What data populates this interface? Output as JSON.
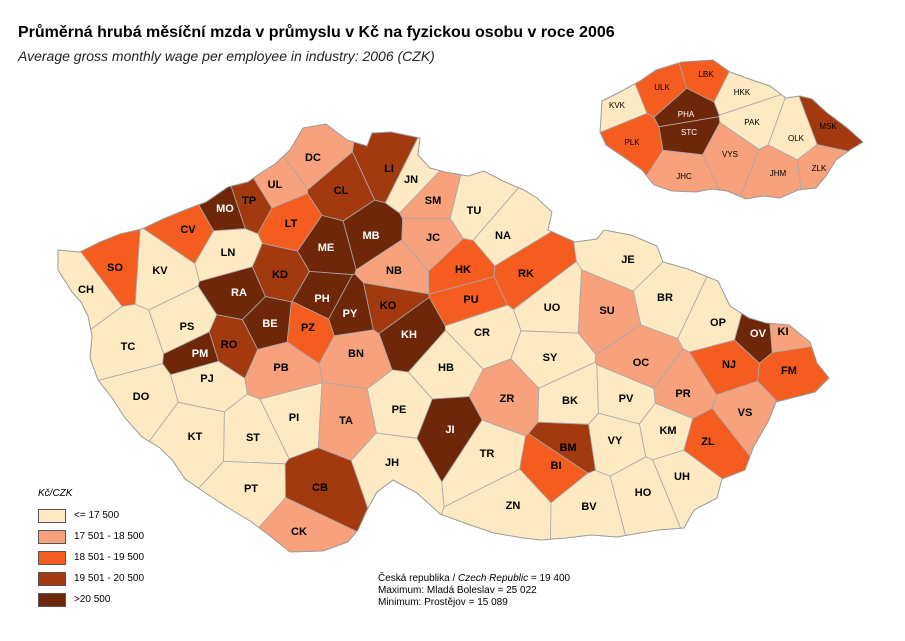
{
  "title": "Průměrná hrubá měsíční mzda v průmyslu v Kč na fyzickou osobu  v roce 2006",
  "subtitle": "Average gross monthly wage per employee in industry: 2006 (CZK)",
  "colors": {
    "c1": "#fde9c2",
    "c2": "#f7a27c",
    "c3": "#f45d1f",
    "c4": "#a3390f",
    "c5": "#6e2709",
    "border": "#a8a8a8"
  },
  "legend": {
    "title": "Kč/CZK",
    "items": [
      {
        "label": "<= 17 500",
        "color": "#fde9c2"
      },
      {
        "label": "17 501 - 18 500",
        "color": "#f7a27c"
      },
      {
        "label": "18 501 - 19 500",
        "color": "#f45d1f"
      },
      {
        "label": "19 501 - 20 500",
        "color": "#a3390f"
      },
      {
        "label": ">20 500",
        "color": "#6e2709"
      }
    ]
  },
  "footnote": {
    "line1_label": "Česká republika / ",
    "line1_label_en": "Czech Republic",
    "line1_value": " = 19 400",
    "line2": "Maximum:  Mladá Boleslav =  25 022",
    "line3": "Minimum: Prostějov = 15 089"
  },
  "districts": [
    {
      "code": "DC",
      "cls": 2
    },
    {
      "code": "CL",
      "cls": 4
    },
    {
      "code": "LI",
      "cls": 4
    },
    {
      "code": "JN",
      "cls": 1
    },
    {
      "code": "UL",
      "cls": 2
    },
    {
      "code": "TP",
      "cls": 4
    },
    {
      "code": "MO",
      "cls": 5
    },
    {
      "code": "SM",
      "cls": 2
    },
    {
      "code": "TU",
      "cls": 1
    },
    {
      "code": "CV",
      "cls": 3
    },
    {
      "code": "LT",
      "cls": 3
    },
    {
      "code": "ME",
      "cls": 5
    },
    {
      "code": "MB",
      "cls": 5
    },
    {
      "code": "JC",
      "cls": 2
    },
    {
      "code": "NA",
      "cls": 1
    },
    {
      "code": "LN",
      "cls": 1
    },
    {
      "code": "KV",
      "cls": 1
    },
    {
      "code": "SO",
      "cls": 3
    },
    {
      "code": "CH",
      "cls": 1
    },
    {
      "code": "KD",
      "cls": 4
    },
    {
      "code": "NB",
      "cls": 2
    },
    {
      "code": "HK",
      "cls": 3
    },
    {
      "code": "RK",
      "cls": 3
    },
    {
      "code": "JE",
      "cls": 1
    },
    {
      "code": "RA",
      "cls": 5
    },
    {
      "code": "PH",
      "cls": 5
    },
    {
      "code": "PU",
      "cls": 3
    },
    {
      "code": "BR",
      "cls": 1
    },
    {
      "code": "PS",
      "cls": 1
    },
    {
      "code": "BE",
      "cls": 5
    },
    {
      "code": "PZ",
      "cls": 3
    },
    {
      "code": "PY",
      "cls": 5
    },
    {
      "code": "KO",
      "cls": 4
    },
    {
      "code": "UO",
      "cls": 1
    },
    {
      "code": "SU",
      "cls": 2
    },
    {
      "code": "OP",
      "cls": 1
    },
    {
      "code": "KI",
      "cls": 2
    },
    {
      "code": "OV",
      "cls": 5
    },
    {
      "code": "TC",
      "cls": 1
    },
    {
      "code": "RO",
      "cls": 4
    },
    {
      "code": "KH",
      "cls": 5
    },
    {
      "code": "CR",
      "cls": 1
    },
    {
      "code": "PM",
      "cls": 5
    },
    {
      "code": "PJ",
      "cls": 1
    },
    {
      "code": "BN",
      "cls": 2
    },
    {
      "code": "SY",
      "cls": 1
    },
    {
      "code": "OC",
      "cls": 2
    },
    {
      "code": "NJ",
      "cls": 3
    },
    {
      "code": "FM",
      "cls": 3
    },
    {
      "code": "PB",
      "cls": 2
    },
    {
      "code": "HB",
      "cls": 1
    },
    {
      "code": "DO",
      "cls": 1
    },
    {
      "code": "ZR",
      "cls": 2
    },
    {
      "code": "PR",
      "cls": 2
    },
    {
      "code": "BK",
      "cls": 1
    },
    {
      "code": "PV",
      "cls": 1
    },
    {
      "code": "VS",
      "cls": 2
    },
    {
      "code": "PI",
      "cls": 1
    },
    {
      "code": "PE",
      "cls": 1
    },
    {
      "code": "TA",
      "cls": 2
    },
    {
      "code": "KT",
      "cls": 1
    },
    {
      "code": "ST",
      "cls": 1
    },
    {
      "code": "JI",
      "cls": 5
    },
    {
      "code": "BM",
      "cls": 4
    },
    {
      "code": "KM",
      "cls": 1
    },
    {
      "code": "ZL",
      "cls": 3
    },
    {
      "code": "VY",
      "cls": 1
    },
    {
      "code": "JH",
      "cls": 1
    },
    {
      "code": "TR",
      "cls": 1
    },
    {
      "code": "BI",
      "cls": 3
    },
    {
      "code": "UH",
      "cls": 1
    },
    {
      "code": "PT",
      "cls": 1
    },
    {
      "code": "CB",
      "cls": 4
    },
    {
      "code": "HO",
      "cls": 1
    },
    {
      "code": "ZN",
      "cls": 1
    },
    {
      "code": "BV",
      "cls": 1
    },
    {
      "code": "CK",
      "cls": 2
    }
  ],
  "regions": [
    {
      "code": "LBK",
      "cls": 3
    },
    {
      "code": "ULK",
      "cls": 3
    },
    {
      "code": "HKK",
      "cls": 1
    },
    {
      "code": "KVK",
      "cls": 1
    },
    {
      "code": "PHA",
      "cls": 5
    },
    {
      "code": "STC",
      "cls": 5
    },
    {
      "code": "PAK",
      "cls": 1
    },
    {
      "code": "MSK",
      "cls": 4
    },
    {
      "code": "OLK",
      "cls": 1
    },
    {
      "code": "PLK",
      "cls": 3
    },
    {
      "code": "VYS",
      "cls": 2
    },
    {
      "code": "ZLK",
      "cls": 2
    },
    {
      "code": "JHC",
      "cls": 2
    },
    {
      "code": "JHM",
      "cls": 2
    }
  ]
}
